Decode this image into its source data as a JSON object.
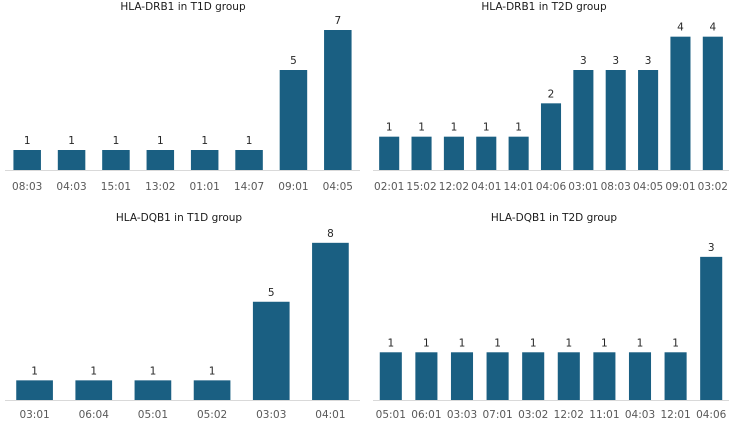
{
  "bar_color": "#1a5f82",
  "chart_data": [
    {
      "type": "bar",
      "title": "HLA-DRB1 in T1D group",
      "categories": [
        "08:03",
        "04:03",
        "15:01",
        "13:02",
        "01:01",
        "14:07",
        "09:01",
        "04:05"
      ],
      "values": [
        1,
        1,
        1,
        1,
        1,
        1,
        5,
        7
      ],
      "data_labels": true,
      "grid": false,
      "legend": "none",
      "ylim": [
        0,
        7.5
      ]
    },
    {
      "type": "bar",
      "title": "HLA-DRB1 in T2D group",
      "categories": [
        "02:01",
        "15:02",
        "12:02",
        "04:01",
        "14:01",
        "04:06",
        "03:01",
        "08:03",
        "04:05",
        "09:01",
        "03:02"
      ],
      "values": [
        1,
        1,
        1,
        1,
        1,
        2,
        3,
        3,
        3,
        4,
        4
      ],
      "data_labels": true,
      "grid": false,
      "legend": "none",
      "ylim": [
        0,
        4.5
      ]
    },
    {
      "type": "bar",
      "title": "HLA-DQB1 in T1D group",
      "categories": [
        "03:01",
        "06:04",
        "05:01",
        "05:02",
        "03:03",
        "04:01"
      ],
      "values": [
        1,
        1,
        1,
        1,
        5,
        8
      ],
      "data_labels": true,
      "grid": false,
      "legend": "none",
      "ylim": [
        0,
        8.5
      ]
    },
    {
      "type": "bar",
      "title": "HLA-DQB1 in T2D group",
      "categories": [
        "05:01",
        "06:01",
        "03:03",
        "07:01",
        "03:02",
        "12:02",
        "11:01",
        "04:03",
        "12:01",
        "04:06"
      ],
      "values": [
        1,
        1,
        1,
        1,
        1,
        1,
        1,
        1,
        1,
        3
      ],
      "data_labels": true,
      "grid": false,
      "legend": "none",
      "ylim": [
        0,
        3.5
      ]
    }
  ]
}
